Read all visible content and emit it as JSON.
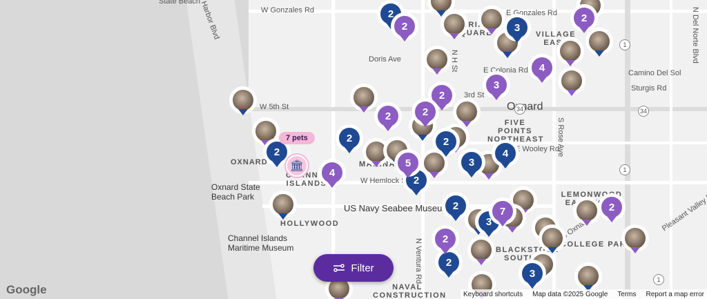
{
  "map": {
    "streets": [
      "W Gonzales Rd",
      "E Gonzales Rd",
      "Doris Ave",
      "W 5th St",
      "3rd St",
      "E Wooley Rd",
      "W Hemlock St",
      "E Colonia Rd",
      "Camino Del Sol",
      "Sturgis Rd",
      "N Ventura Rd",
      "S Rose Ave",
      "N Del Norte Blvd",
      "Rose Ave",
      "Harbor Blvd",
      "N H St",
      "Pleasant Valley Rd",
      "S Oxnard Blvd"
    ],
    "places": [
      "Oxnard",
      "OXNARD",
      "CHANNEL ISLANDS",
      "FIVE POINTS NORTHEAST",
      "LEMONWOOD EASTWOOD",
      "COLLEGE PARK",
      "BLACKSTOCK SOUTH",
      "HOLLYWOOD",
      "NAVAL CONSTRUCTION",
      "Oxnard State Beach Park",
      "Channel Islands Maritime Museum",
      "US Navy Seabee Museum",
      "State Beach",
      "CARRIAGE SQUARE",
      "VILLAGE EAST",
      "MARINA"
    ],
    "highway_shields": [
      "1",
      "34",
      "34",
      "1",
      "1"
    ]
  },
  "colors": {
    "cluster_blue": "#1f4a93",
    "cluster_purple": "#8c5cc2",
    "filter_button": "#5b2ca0",
    "pets_pill": "#f4b7d6"
  },
  "clusters": [
    {
      "count": "2",
      "type": "blue"
    },
    {
      "count": "3",
      "type": "blue"
    },
    {
      "count": "2",
      "type": "blue"
    },
    {
      "count": "2",
      "type": "blue"
    },
    {
      "count": "2",
      "type": "blue"
    },
    {
      "count": "4",
      "type": "blue"
    },
    {
      "count": "3",
      "type": "blue"
    },
    {
      "count": "2",
      "type": "blue"
    },
    {
      "count": "2",
      "type": "blue"
    },
    {
      "count": "3",
      "type": "blue"
    },
    {
      "count": "2",
      "type": "blue"
    },
    {
      "count": "3",
      "type": "blue"
    },
    {
      "count": "2",
      "type": "purple"
    },
    {
      "count": "2",
      "type": "purple"
    },
    {
      "count": "4",
      "type": "purple"
    },
    {
      "count": "3",
      "type": "purple"
    },
    {
      "count": "2",
      "type": "purple"
    },
    {
      "count": "2",
      "type": "purple"
    },
    {
      "count": "2",
      "type": "purple"
    },
    {
      "count": "4",
      "type": "purple"
    },
    {
      "count": "5",
      "type": "purple"
    },
    {
      "count": "7",
      "type": "purple"
    },
    {
      "count": "2",
      "type": "purple"
    },
    {
      "count": "2",
      "type": "purple"
    }
  ],
  "pet_photo_marker_count": 28,
  "selected_location": {
    "label": "7 pets",
    "icon": "building-icon"
  },
  "filter": {
    "label": "Filter",
    "icon": "sliders-icon"
  },
  "footer": {
    "logo": "Google",
    "shortcuts": "Keyboard shortcuts",
    "map_data": "Map data ©2025 Google",
    "terms": "Terms",
    "report": "Report a map error"
  }
}
